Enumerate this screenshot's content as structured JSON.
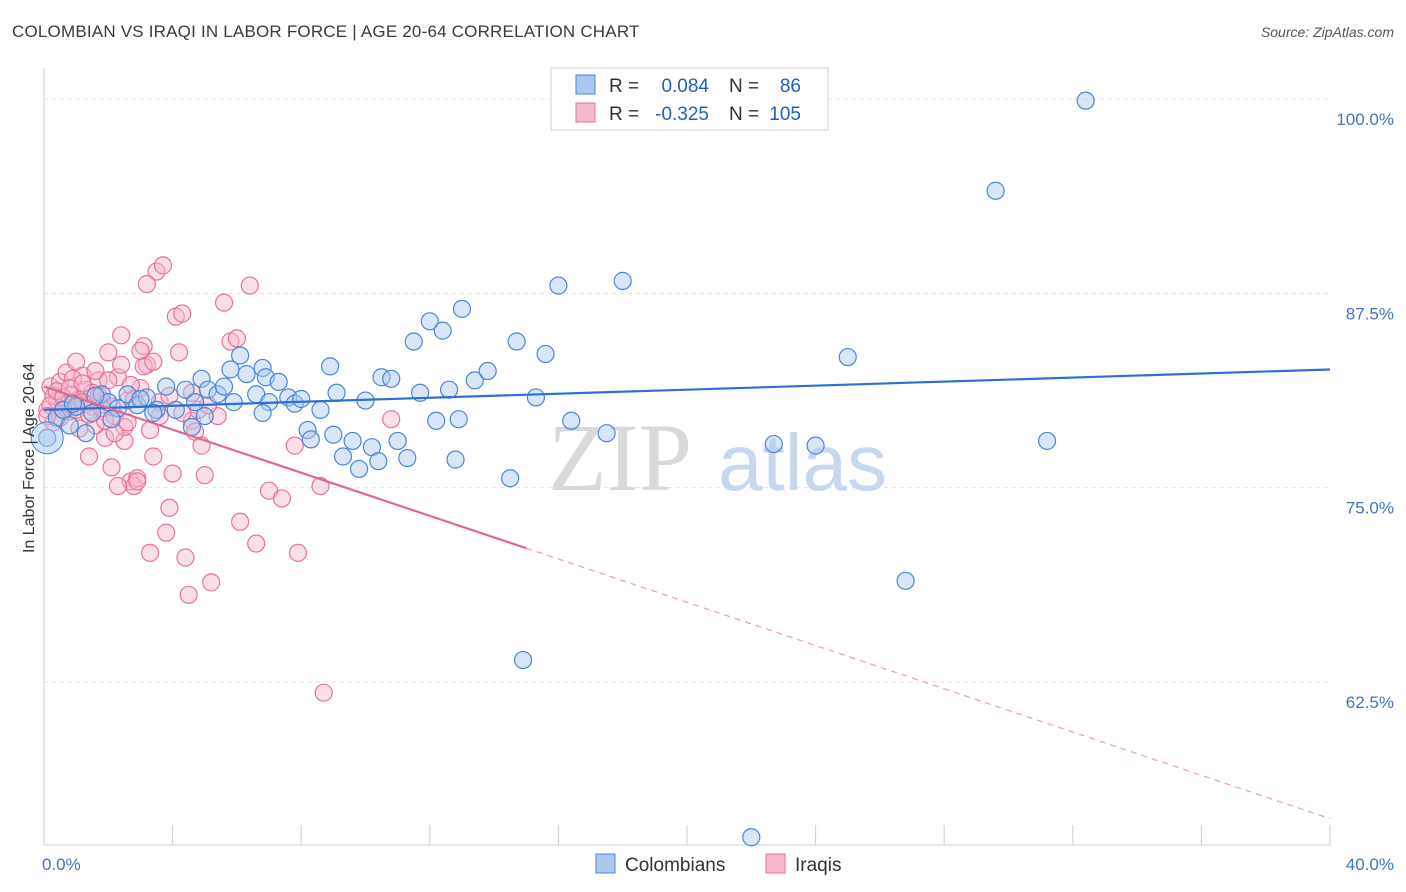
{
  "title": "COLOMBIAN VS IRAQI IN LABOR FORCE | AGE 20-64 CORRELATION CHART",
  "source": "Source: ZipAtlas.com",
  "watermark": {
    "zip": "ZIP",
    "atlas": "atlas"
  },
  "colors": {
    "colombians": "#4a86d8",
    "iraqis": "#e8739a",
    "colombians_fill": "#aac8f0",
    "iraqis_fill": "#f5b8cc",
    "tick": "#4472c4"
  },
  "chart_data": {
    "type": "scatter",
    "ylabel": "In Labor Force | Age 20-64",
    "xlim": [
      0,
      40
    ],
    "ylim": [
      52,
      102
    ],
    "x_tick_labels": {
      "min": "0.0%",
      "max": "40.0%"
    },
    "y_ticks": [
      {
        "value": 100,
        "label": "100.0%"
      },
      {
        "value": 87.5,
        "label": "87.5%"
      },
      {
        "value": 75,
        "label": "75.0%"
      },
      {
        "value": 62.5,
        "label": "62.5%"
      }
    ],
    "legend": {
      "rows": [
        {
          "r_label": "R =",
          "r_value": "0.084",
          "n_label": "N =",
          "n_value": "86"
        },
        {
          "r_label": "R =",
          "r_value": "-0.325",
          "n_label": "N =",
          "n_value": "105"
        }
      ]
    },
    "series": [
      {
        "name": "Colombians",
        "trend": {
          "x0": 0,
          "y0": 80.0,
          "x1": 40,
          "y1": 82.6
        },
        "points": [
          [
            0.1,
            78.2
          ],
          [
            0.4,
            79.5
          ],
          [
            0.6,
            80.0
          ],
          [
            0.8,
            79.0
          ],
          [
            1.0,
            80.2
          ],
          [
            1.3,
            78.5
          ],
          [
            1.5,
            79.8
          ],
          [
            1.8,
            81.0
          ],
          [
            2.0,
            80.5
          ],
          [
            2.3,
            80.1
          ],
          [
            2.6,
            81.0
          ],
          [
            2.9,
            80.3
          ],
          [
            3.2,
            80.8
          ],
          [
            3.5,
            80.0
          ],
          [
            3.8,
            81.5
          ],
          [
            4.1,
            80.0
          ],
          [
            4.4,
            81.3
          ],
          [
            4.7,
            80.5
          ],
          [
            4.9,
            82.0
          ],
          [
            5.1,
            81.3
          ],
          [
            5.0,
            79.6
          ],
          [
            5.4,
            81.0
          ],
          [
            5.6,
            81.5
          ],
          [
            5.8,
            82.6
          ],
          [
            5.9,
            80.5
          ],
          [
            6.1,
            83.5
          ],
          [
            6.3,
            82.3
          ],
          [
            6.6,
            81.0
          ],
          [
            6.8,
            82.7
          ],
          [
            6.9,
            82.1
          ],
          [
            7.0,
            80.5
          ],
          [
            7.3,
            81.8
          ],
          [
            7.6,
            80.8
          ],
          [
            7.8,
            80.4
          ],
          [
            8.0,
            80.7
          ],
          [
            8.2,
            78.7
          ],
          [
            8.3,
            78.1
          ],
          [
            8.9,
            82.8
          ],
          [
            9.0,
            78.4
          ],
          [
            9.1,
            81.1
          ],
          [
            9.3,
            77.0
          ],
          [
            9.6,
            78.0
          ],
          [
            9.8,
            76.2
          ],
          [
            10.0,
            80.6
          ],
          [
            10.2,
            77.6
          ],
          [
            10.4,
            76.7
          ],
          [
            10.5,
            82.1
          ],
          [
            10.8,
            82.0
          ],
          [
            11.0,
            78.0
          ],
          [
            11.3,
            76.9
          ],
          [
            11.5,
            84.4
          ],
          [
            11.7,
            81.1
          ],
          [
            12.0,
            85.7
          ],
          [
            12.2,
            79.3
          ],
          [
            12.4,
            85.1
          ],
          [
            12.6,
            81.3
          ],
          [
            12.8,
            76.8
          ],
          [
            13.0,
            86.5
          ],
          [
            13.4,
            81.9
          ],
          [
            13.8,
            82.5
          ],
          [
            14.5,
            75.6
          ],
          [
            14.7,
            84.4
          ],
          [
            14.9,
            63.9
          ],
          [
            15.3,
            80.8
          ],
          [
            15.6,
            83.6
          ],
          [
            16.0,
            88.0
          ],
          [
            16.4,
            79.3
          ],
          [
            17.5,
            78.5
          ],
          [
            18.0,
            88.3
          ],
          [
            22.7,
            77.8
          ],
          [
            24.0,
            77.7
          ],
          [
            25.0,
            83.4
          ],
          [
            26.8,
            69.0
          ],
          [
            29.6,
            94.1
          ],
          [
            31.2,
            78.0
          ],
          [
            32.4,
            99.9
          ],
          [
            22.0,
            52.5
          ],
          [
            3.0,
            80.7
          ],
          [
            2.1,
            79.4
          ],
          [
            1.6,
            80.9
          ],
          [
            0.9,
            80.4
          ],
          [
            4.6,
            78.9
          ],
          [
            6.8,
            79.8
          ],
          [
            8.6,
            80.0
          ],
          [
            12.9,
            79.4
          ],
          [
            3.4,
            79.8
          ]
        ]
      },
      {
        "name": "Iraqis",
        "trend": {
          "x0": 0,
          "y0": 81.5,
          "x1": 15.0,
          "y1": 71.1
        },
        "trend_dashed": {
          "x0": 15.0,
          "y0": 71.1,
          "x1": 40,
          "y1": 53.7
        },
        "points": [
          [
            0.1,
            80.0
          ],
          [
            0.2,
            81.5
          ],
          [
            0.3,
            79.2
          ],
          [
            0.4,
            80.6
          ],
          [
            0.5,
            81.8
          ],
          [
            0.6,
            80.3
          ],
          [
            0.7,
            82.4
          ],
          [
            0.8,
            79.9
          ],
          [
            0.9,
            81.0
          ],
          [
            1.0,
            83.1
          ],
          [
            1.1,
            80.7
          ],
          [
            1.2,
            82.2
          ],
          [
            1.3,
            81.3
          ],
          [
            1.4,
            77.0
          ],
          [
            1.5,
            80.2
          ],
          [
            1.6,
            79.0
          ],
          [
            1.7,
            81.9
          ],
          [
            1.8,
            80.6
          ],
          [
            1.9,
            78.2
          ],
          [
            2.0,
            83.7
          ],
          [
            2.1,
            76.3
          ],
          [
            2.2,
            79.6
          ],
          [
            2.3,
            82.1
          ],
          [
            2.4,
            84.8
          ],
          [
            2.5,
            78.0
          ],
          [
            2.6,
            80.6
          ],
          [
            2.7,
            75.4
          ],
          [
            2.8,
            75.1
          ],
          [
            2.9,
            75.6
          ],
          [
            3.0,
            81.4
          ],
          [
            3.1,
            84.1
          ],
          [
            3.2,
            82.9
          ],
          [
            3.3,
            70.8
          ],
          [
            3.4,
            77.0
          ],
          [
            3.5,
            88.9
          ],
          [
            3.6,
            79.6
          ],
          [
            3.7,
            89.3
          ],
          [
            3.8,
            72.1
          ],
          [
            3.9,
            73.7
          ],
          [
            4.0,
            75.9
          ],
          [
            4.1,
            86.0
          ],
          [
            4.2,
            83.7
          ],
          [
            4.3,
            86.2
          ],
          [
            4.4,
            70.5
          ],
          [
            4.5,
            68.1
          ],
          [
            4.6,
            79.3
          ],
          [
            4.7,
            78.6
          ],
          [
            4.8,
            80.0
          ],
          [
            4.9,
            77.7
          ],
          [
            5.0,
            75.8
          ],
          [
            5.2,
            68.9
          ],
          [
            5.4,
            79.6
          ],
          [
            5.6,
            86.9
          ],
          [
            5.8,
            84.4
          ],
          [
            6.1,
            72.8
          ],
          [
            6.4,
            88.0
          ],
          [
            6.6,
            71.4
          ],
          [
            7.0,
            74.8
          ],
          [
            7.4,
            74.3
          ],
          [
            7.8,
            77.7
          ],
          [
            7.9,
            70.8
          ],
          [
            8.6,
            75.1
          ],
          [
            8.7,
            61.8
          ],
          [
            10.8,
            79.4
          ],
          [
            0.3,
            80.9
          ],
          [
            0.5,
            79.5
          ],
          [
            0.7,
            80.1
          ],
          [
            0.9,
            82.0
          ],
          [
            1.1,
            78.8
          ],
          [
            1.3,
            80.4
          ],
          [
            1.5,
            81.1
          ],
          [
            1.7,
            80.9
          ],
          [
            1.9,
            79.3
          ],
          [
            2.1,
            80.2
          ],
          [
            2.3,
            75.1
          ],
          [
            2.5,
            78.9
          ],
          [
            2.7,
            81.6
          ],
          [
            2.9,
            75.4
          ],
          [
            3.1,
            82.8
          ],
          [
            3.3,
            78.7
          ],
          [
            3.6,
            80.5
          ],
          [
            3.9,
            80.9
          ],
          [
            4.3,
            79.8
          ],
          [
            4.6,
            81.1
          ],
          [
            0.2,
            80.3
          ],
          [
            0.4,
            81.2
          ],
          [
            0.6,
            80.8
          ],
          [
            0.8,
            81.4
          ],
          [
            1.0,
            80.0
          ],
          [
            1.2,
            81.7
          ],
          [
            1.4,
            79.7
          ],
          [
            1.6,
            82.5
          ],
          [
            1.8,
            80.1
          ],
          [
            2.0,
            81.9
          ],
          [
            2.2,
            78.5
          ],
          [
            2.4,
            82.9
          ],
          [
            2.6,
            79.2
          ],
          [
            2.8,
            80.7
          ],
          [
            3.0,
            83.8
          ],
          [
            3.2,
            88.1
          ],
          [
            3.4,
            83.1
          ],
          [
            5.1,
            80.3
          ],
          [
            6.0,
            84.6
          ],
          [
            0.1,
            79.6
          ],
          [
            1.2,
            80.5
          ]
        ]
      }
    ],
    "bottom_legend": [
      "Colombians",
      "Iraqis"
    ]
  }
}
